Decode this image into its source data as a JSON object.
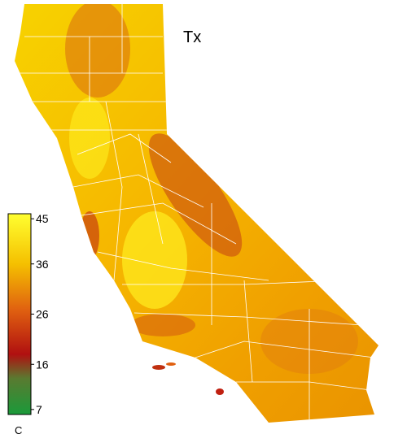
{
  "title": "Tx",
  "colorbar": {
    "lim": [
      6,
      46
    ],
    "ticks": [
      45,
      36,
      26,
      16,
      7
    ],
    "unit": "C"
  }
}
